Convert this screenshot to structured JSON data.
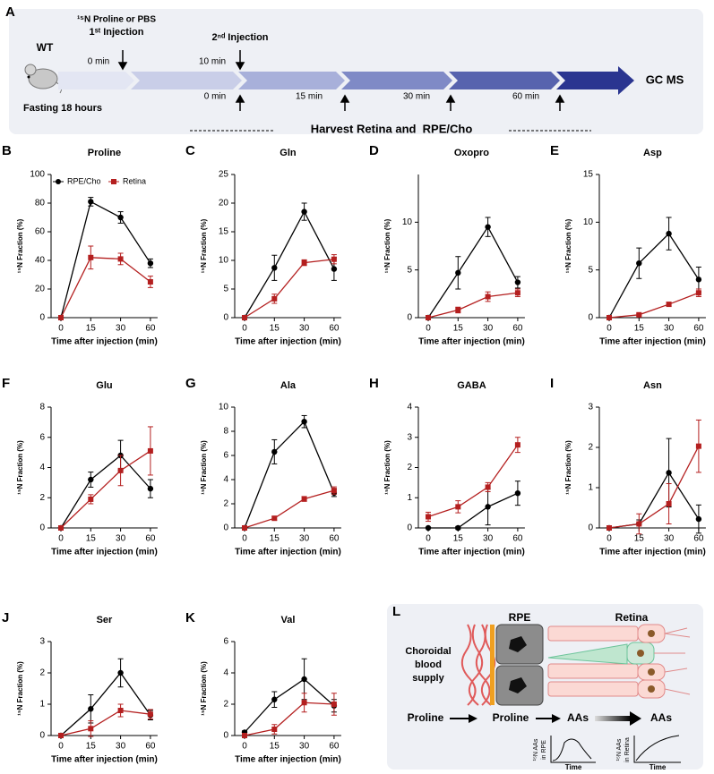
{
  "panel_a": {
    "letter": "A",
    "mouse_label": "WT",
    "fasting": "Fasting 18 hours",
    "first_injection": [
      "¹⁵N Proline or PBS",
      "1ˢᵗ Injection"
    ],
    "second_injection": "2ⁿᵈ Injection",
    "times_top": [
      "0 min",
      "10 min"
    ],
    "times_bottom": [
      "0 min",
      "15 min",
      "30 min",
      "60 min"
    ],
    "end": "GC MS",
    "harvest": "Harvest Retina and  RPE/Cho"
  },
  "chart_data": [
    {
      "panel": "B",
      "type": "line",
      "title": "Proline",
      "categories": [
        "0",
        "15",
        "30",
        "60"
      ],
      "xlabel": "Time after injection (min)",
      "ylabel": "¹⁵N Fraction (%)",
      "ylim": [
        0,
        100
      ],
      "yticks": [
        0,
        20,
        40,
        60,
        80,
        100
      ],
      "legend": true,
      "series": [
        {
          "name": "RPE/Cho",
          "color": "#000000",
          "marker": "circle",
          "values": [
            0,
            81,
            70,
            38
          ],
          "errors": [
            0,
            3,
            4,
            3
          ]
        },
        {
          "name": "Retina",
          "color": "#b41f1f",
          "marker": "square",
          "values": [
            0,
            42,
            41,
            25
          ],
          "errors": [
            0,
            8,
            4,
            4
          ]
        }
      ]
    },
    {
      "panel": "C",
      "type": "line",
      "title": "Gln",
      "categories": [
        "0",
        "15",
        "30",
        "60"
      ],
      "xlabel": "Time after injection (min)",
      "ylabel": "¹⁵N Fraction (%)",
      "ylim": [
        0,
        25
      ],
      "yticks": [
        0,
        5,
        10,
        15,
        20,
        25
      ],
      "legend": false,
      "series": [
        {
          "name": "RPE/Cho",
          "color": "#000000",
          "marker": "circle",
          "values": [
            0,
            8.7,
            18.5,
            8.5
          ],
          "errors": [
            0,
            2.2,
            1.5,
            2
          ]
        },
        {
          "name": "Retina",
          "color": "#b41f1f",
          "marker": "square",
          "values": [
            0,
            3.3,
            9.6,
            10.2
          ],
          "errors": [
            0,
            0.8,
            0.5,
            0.8
          ]
        }
      ]
    },
    {
      "panel": "D",
      "type": "line",
      "title": "Oxopro",
      "categories": [
        "0",
        "15",
        "30",
        "60"
      ],
      "xlabel": "Time after injection (min)",
      "ylabel": "¹⁵N Fraction (%)",
      "ylim": [
        0,
        15
      ],
      "yticks": [
        0,
        5,
        10
      ],
      "legend": false,
      "series": [
        {
          "name": "RPE/Cho",
          "color": "#000000",
          "marker": "circle",
          "values": [
            0,
            4.7,
            9.5,
            3.7
          ],
          "errors": [
            0,
            1.7,
            1,
            0.6
          ]
        },
        {
          "name": "Retina",
          "color": "#b41f1f",
          "marker": "square",
          "values": [
            0,
            0.8,
            2.2,
            2.6
          ],
          "errors": [
            0,
            0.3,
            0.5,
            0.4
          ]
        }
      ]
    },
    {
      "panel": "E",
      "type": "line",
      "title": "Asp",
      "categories": [
        "0",
        "15",
        "30",
        "60"
      ],
      "xlabel": "Time after injection (min)",
      "ylabel": "¹⁵N Fraction (%)",
      "ylim": [
        0,
        15
      ],
      "yticks": [
        0,
        5,
        10,
        15
      ],
      "legend": false,
      "series": [
        {
          "name": "RPE/Cho",
          "color": "#000000",
          "marker": "circle",
          "values": [
            0,
            5.7,
            8.8,
            4
          ],
          "errors": [
            0,
            1.6,
            1.7,
            1.3
          ]
        },
        {
          "name": "Retina",
          "color": "#b41f1f",
          "marker": "square",
          "values": [
            0,
            0.3,
            1.4,
            2.6
          ],
          "errors": [
            0,
            0.1,
            0.2,
            0.4
          ]
        }
      ]
    },
    {
      "panel": "F",
      "type": "line",
      "title": "Glu",
      "categories": [
        "0",
        "15",
        "30",
        "60"
      ],
      "xlabel": "Time after injection (min)",
      "ylabel": "¹⁵N Fraction (%)",
      "ylim": [
        0,
        8
      ],
      "yticks": [
        0,
        2,
        4,
        6,
        8
      ],
      "legend": false,
      "series": [
        {
          "name": "RPE/Cho",
          "color": "#000000",
          "marker": "circle",
          "values": [
            0,
            3.2,
            4.8,
            2.6
          ],
          "errors": [
            0,
            0.5,
            1,
            0.6
          ]
        },
        {
          "name": "Retina",
          "color": "#b41f1f",
          "marker": "square",
          "values": [
            0,
            1.9,
            3.8,
            5.1
          ],
          "errors": [
            0,
            0.3,
            1,
            1.6
          ]
        }
      ]
    },
    {
      "panel": "G",
      "type": "line",
      "title": "Ala",
      "categories": [
        "0",
        "15",
        "30",
        "60"
      ],
      "xlabel": "Time after injection (min)",
      "ylabel": "¹⁵N Fraction (%)",
      "ylim": [
        0,
        10
      ],
      "yticks": [
        0,
        2,
        4,
        6,
        8,
        10
      ],
      "legend": false,
      "series": [
        {
          "name": "RPE/Cho",
          "color": "#000000",
          "marker": "circle",
          "values": [
            0,
            6.3,
            8.8,
            2.9
          ],
          "errors": [
            0,
            1,
            0.5,
            0.3
          ]
        },
        {
          "name": "Retina",
          "color": "#b41f1f",
          "marker": "square",
          "values": [
            0,
            0.8,
            2.4,
            3.1
          ],
          "errors": [
            0,
            0.15,
            0.2,
            0.3
          ]
        }
      ]
    },
    {
      "panel": "H",
      "type": "line",
      "title": "GABA",
      "categories": [
        "0",
        "15",
        "30",
        "60"
      ],
      "xlabel": "Time after injection (min)",
      "ylabel": "¹⁵N Fraction (%)",
      "ylim": [
        0,
        4
      ],
      "yticks": [
        0,
        1,
        2,
        3,
        4
      ],
      "legend": false,
      "series": [
        {
          "name": "RPE/Cho",
          "color": "#000000",
          "marker": "circle",
          "values": [
            0,
            0,
            0.7,
            1.15
          ],
          "errors": [
            0,
            0.05,
            0.6,
            0.4
          ]
        },
        {
          "name": "Retina",
          "color": "#b41f1f",
          "marker": "square",
          "values": [
            0.37,
            0.7,
            1.35,
            2.75
          ],
          "errors": [
            0.15,
            0.2,
            0.15,
            0.25
          ]
        }
      ]
    },
    {
      "panel": "I",
      "type": "line",
      "title": "Asn",
      "categories": [
        "0",
        "15",
        "30",
        "60"
      ],
      "xlabel": "Time after injection (min)",
      "ylabel": "¹⁵N Fraction (%)",
      "ylim": [
        0,
        3
      ],
      "yticks": [
        0,
        1,
        2,
        3
      ],
      "legend": false,
      "series": [
        {
          "name": "RPE/Cho",
          "color": "#000000",
          "marker": "circle",
          "values": [
            0,
            0.1,
            1.37,
            0.22
          ],
          "errors": [
            0,
            0.1,
            0.85,
            0.35
          ]
        },
        {
          "name": "Retina",
          "color": "#b41f1f",
          "marker": "square",
          "values": [
            0,
            0.1,
            0.6,
            2.03
          ],
          "errors": [
            0,
            0.25,
            0.5,
            0.65
          ]
        }
      ]
    },
    {
      "panel": "J",
      "type": "line",
      "title": "Ser",
      "categories": [
        "0",
        "15",
        "30",
        "60"
      ],
      "xlabel": "Time after injection (min)",
      "ylabel": "¹⁵N Fraction (%)",
      "ylim": [
        0,
        3
      ],
      "yticks": [
        0,
        1,
        2,
        3
      ],
      "legend": false,
      "series": [
        {
          "name": "RPE/Cho",
          "color": "#000000",
          "marker": "circle",
          "values": [
            0,
            0.85,
            2,
            0.65
          ],
          "errors": [
            0,
            0.45,
            0.45,
            0.15
          ]
        },
        {
          "name": "Retina",
          "color": "#b41f1f",
          "marker": "square",
          "values": [
            0,
            0.22,
            0.8,
            0.68
          ],
          "errors": [
            0,
            0.25,
            0.2,
            0.15
          ]
        }
      ]
    },
    {
      "panel": "K",
      "type": "line",
      "title": "Val",
      "categories": [
        "0",
        "15",
        "30",
        "60"
      ],
      "xlabel": "Time after injection (min)",
      "ylabel": "¹⁵N Fraction (%)",
      "ylim": [
        0,
        6
      ],
      "yticks": [
        0,
        2,
        4,
        6
      ],
      "legend": false,
      "series": [
        {
          "name": "RPE/Cho",
          "color": "#000000",
          "marker": "circle",
          "values": [
            0.2,
            2.3,
            3.6,
            1.9
          ],
          "errors": [
            0.1,
            0.5,
            1.3,
            0.4
          ]
        },
        {
          "name": "Retina",
          "color": "#b41f1f",
          "marker": "square",
          "values": [
            0,
            0.4,
            2.1,
            2
          ],
          "errors": [
            0,
            0.3,
            0.6,
            0.7
          ]
        }
      ]
    }
  ],
  "panel_l": {
    "letter": "L",
    "rpe": "RPE",
    "retina": "Retina",
    "choroid": [
      "Choroidal",
      "blood",
      "supply"
    ],
    "flow": [
      "Proline",
      "Proline",
      "AAs",
      "AAs"
    ],
    "insets": [
      {
        "ylabel": [
          "¹⁵N AAs",
          "in RPE"
        ],
        "xlabel": "Time"
      },
      {
        "ylabel": [
          "¹⁵N AAs",
          "in Retina"
        ],
        "xlabel": "Time"
      }
    ]
  }
}
